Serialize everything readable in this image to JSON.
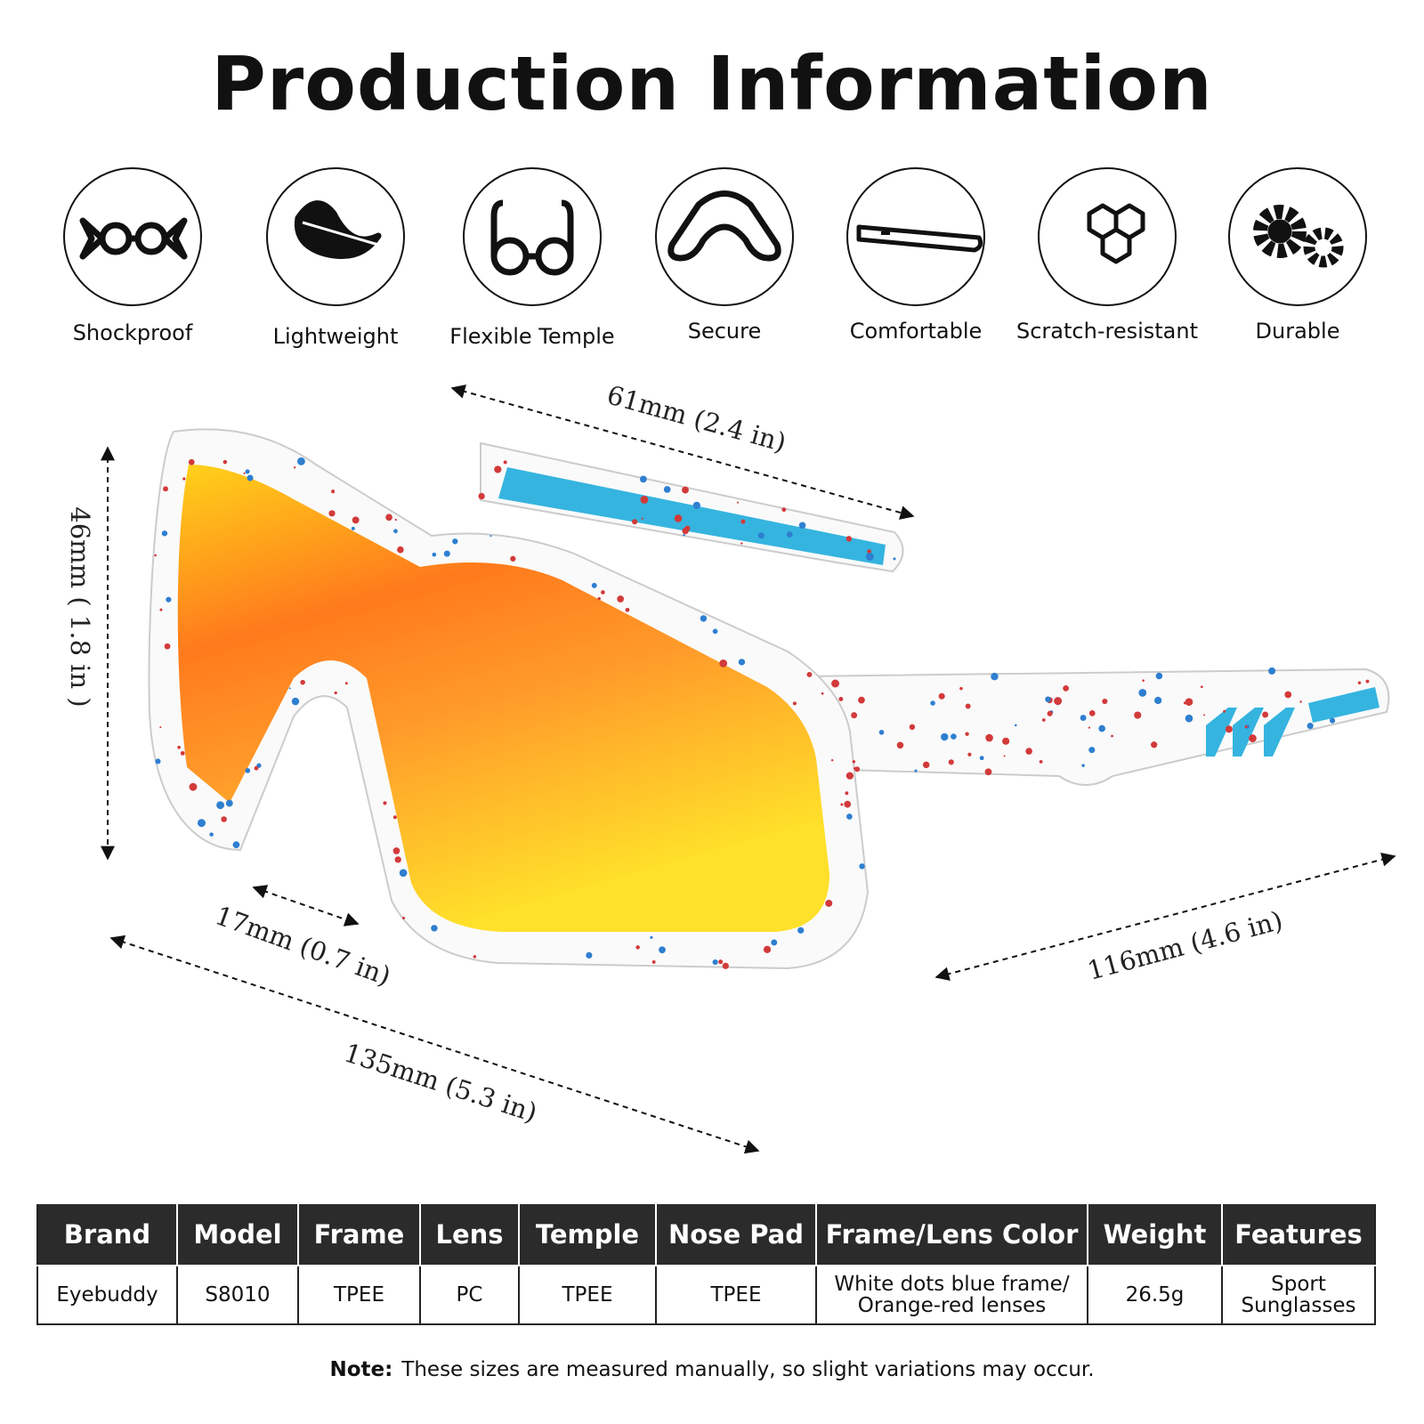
{
  "header": {
    "title": "Production Information"
  },
  "features": [
    "Shockproof",
    "Lightweight",
    "Flexible Temple",
    "Secure",
    "Comfortable",
    "Scratch-resistant",
    "Durable"
  ],
  "dimensions": [
    "61mm  (2.4 in)",
    "46mm ( 1.8 in )",
    "17mm  (0.7 in)",
    "135mm  (5.3 in)",
    "116mm  (4.6 in)"
  ],
  "table": {
    "headers": [
      "Brand",
      "Model",
      "Frame",
      "Lens",
      "Temple",
      "Nose Pad",
      "Frame/Lens Color",
      "Weight",
      "Features"
    ],
    "rows": [
      [
        "Eyebuddy",
        "S8010",
        "TPEE",
        "PC",
        "TPEE",
        "TPEE",
        "White dots blue frame/\nOrange-red lenses",
        "26.5g",
        "Sport\nSunglasses"
      ]
    ]
  },
  "note": {
    "label": "Note:",
    "text": "These sizes are measured manually, so slight variations may occur."
  }
}
